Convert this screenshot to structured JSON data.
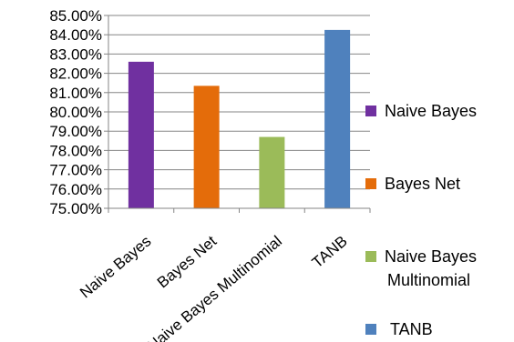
{
  "chart_data": {
    "type": "bar",
    "title": "",
    "xlabel": "",
    "ylabel": "",
    "categories": [
      "Naive Bayes",
      "Bayes Net",
      "Naive Bayes Multinomial",
      "TANB"
    ],
    "values": [
      82.6,
      81.35,
      78.7,
      84.25
    ],
    "ylim": [
      75,
      85
    ],
    "y_ticks": [
      "75.00%",
      "76.00%",
      "77.00%",
      "78.00%",
      "79.00%",
      "80.00%",
      "81.00%",
      "82.00%",
      "83.00%",
      "84.00%",
      "85.00%"
    ],
    "grid": true,
    "legend_position": "right",
    "legend": [
      {
        "label": "Naive Bayes",
        "color": "#7030A0"
      },
      {
        "label": "Bayes Net",
        "color": "#E46C0A"
      },
      {
        "label": "Naive Bayes Multinomial",
        "color": "#9BBB59"
      },
      {
        "label": "TANB",
        "color": "#4F81BD"
      }
    ],
    "colors": [
      "#7030A0",
      "#E46C0A",
      "#9BBB59",
      "#4F81BD"
    ]
  }
}
